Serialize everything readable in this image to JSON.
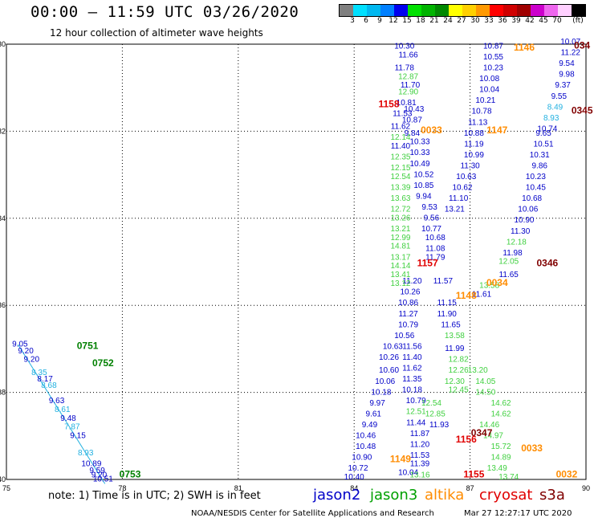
{
  "header": {
    "title": "00:00 – 11:59 UTC 03/26/2020",
    "subtitle": "12 hour collection of altimeter wave heights"
  },
  "scale": {
    "unit_label": "(ft)",
    "items": [
      {
        "label": "",
        "color": "#808080"
      },
      {
        "label": "3",
        "color": "#00e0ff"
      },
      {
        "label": "6",
        "color": "#00b8f0"
      },
      {
        "label": "9",
        "color": "#0080ff"
      },
      {
        "label": "12",
        "color": "#0000ee"
      },
      {
        "label": "15",
        "color": "#00e000"
      },
      {
        "label": "18",
        "color": "#00b400"
      },
      {
        "label": "21",
        "color": "#008800"
      },
      {
        "label": "24",
        "color": "#ffff00"
      },
      {
        "label": "27",
        "color": "#ffd000"
      },
      {
        "label": "30",
        "color": "#ff9900"
      },
      {
        "label": "33",
        "color": "#ff0000"
      },
      {
        "label": "36",
        "color": "#d00000"
      },
      {
        "label": "39",
        "color": "#a00000"
      },
      {
        "label": "42",
        "color": "#cc00cc"
      },
      {
        "label": "45",
        "color": "#ee66ee"
      },
      {
        "label": "70",
        "color": "#ffd0ff"
      },
      {
        "label": "",
        "color": "#000000"
      }
    ]
  },
  "axes": {
    "lon_ticks": [
      "75",
      "78",
      "81",
      "84",
      "87",
      "90"
    ],
    "lat_ticks": [
      "30",
      "32",
      "34",
      "36",
      "38",
      "40"
    ],
    "lon_min": 75,
    "lon_max": 90,
    "lat_min": 30,
    "lat_max": 40
  },
  "colors": {
    "dark_blue": "#0000c8",
    "green": "#40d040",
    "cyan": "#20b0e0",
    "red": "#e00000",
    "orange": "#ff8c00",
    "dark_green": "#008000",
    "dark_red": "#800000"
  },
  "time_labels": [
    {
      "text": "0751",
      "lon": 77.1,
      "lat": 37.0,
      "color": "dark_green"
    },
    {
      "text": "0752",
      "lon": 77.5,
      "lat": 37.4,
      "color": "dark_green"
    },
    {
      "text": "0753",
      "lon": 78.2,
      "lat": 39.95,
      "color": "dark_green"
    },
    {
      "text": "1158",
      "lon": 84.9,
      "lat": 31.45,
      "color": "red"
    },
    {
      "text": "0033",
      "lon": 86.0,
      "lat": 32.05,
      "color": "orange"
    },
    {
      "text": "1147",
      "lon": 87.7,
      "lat": 32.05,
      "color": "orange"
    },
    {
      "text": "1146",
      "lon": 88.4,
      "lat": 30.15,
      "color": "orange"
    },
    {
      "text": "0345",
      "lon": 89.9,
      "lat": 31.6,
      "color": "dark_red"
    },
    {
      "text": "034",
      "lon": 89.9,
      "lat": 30.1,
      "color": "dark_red"
    },
    {
      "text": "1157",
      "lon": 85.9,
      "lat": 35.1,
      "color": "red"
    },
    {
      "text": "0346",
      "lon": 89.0,
      "lat": 35.1,
      "color": "dark_red"
    },
    {
      "text": "0034",
      "lon": 87.7,
      "lat": 35.55,
      "color": "orange"
    },
    {
      "text": "1148",
      "lon": 86.9,
      "lat": 35.85,
      "color": "orange"
    },
    {
      "text": "0347",
      "lon": 87.3,
      "lat": 39.0,
      "color": "dark_red"
    },
    {
      "text": "1156",
      "lon": 86.9,
      "lat": 39.15,
      "color": "red"
    },
    {
      "text": "0033",
      "lon": 88.6,
      "lat": 39.35,
      "color": "orange"
    },
    {
      "text": "1149",
      "lon": 85.2,
      "lat": 39.6,
      "color": "orange"
    },
    {
      "text": "1155",
      "lon": 87.1,
      "lat": 39.95,
      "color": "red"
    },
    {
      "text": "0032",
      "lon": 89.5,
      "lat": 39.95,
      "color": "orange"
    }
  ],
  "observations": [
    {
      "lon": 75.35,
      "lat": 36.95,
      "v": "9.05",
      "c": "dark_blue"
    },
    {
      "lon": 75.5,
      "lat": 37.1,
      "v": "9.20",
      "c": "dark_blue"
    },
    {
      "lon": 75.65,
      "lat": 37.3,
      "v": "9.20",
      "c": "dark_blue"
    },
    {
      "lon": 75.85,
      "lat": 37.6,
      "v": "8.35",
      "c": "cyan"
    },
    {
      "lon": 76.0,
      "lat": 37.75,
      "v": "8.17",
      "c": "dark_blue"
    },
    {
      "lon": 76.1,
      "lat": 37.9,
      "v": "8.68",
      "c": "cyan"
    },
    {
      "lon": 76.3,
      "lat": 38.25,
      "v": "9.63",
      "c": "dark_blue"
    },
    {
      "lon": 76.45,
      "lat": 38.45,
      "v": "8.61",
      "c": "cyan"
    },
    {
      "lon": 76.6,
      "lat": 38.65,
      "v": "9.48",
      "c": "dark_blue"
    },
    {
      "lon": 76.7,
      "lat": 38.85,
      "v": "7.87",
      "c": "cyan"
    },
    {
      "lon": 76.85,
      "lat": 39.05,
      "v": "9.15",
      "c": "dark_blue"
    },
    {
      "lon": 77.05,
      "lat": 39.45,
      "v": "8.93",
      "c": "cyan"
    },
    {
      "lon": 77.2,
      "lat": 39.7,
      "v": "10.89",
      "c": "dark_blue"
    },
    {
      "lon": 77.35,
      "lat": 39.85,
      "v": "9.59",
      "c": "dark_blue"
    },
    {
      "lon": 77.4,
      "lat": 39.95,
      "v": "9.20",
      "c": "dark_blue"
    },
    {
      "lon": 77.5,
      "lat": 40.05,
      "v": "10.51",
      "c": "dark_blue"
    },
    {
      "lon": 85.3,
      "lat": 30.1,
      "v": "10.30",
      "c": "dark_blue"
    },
    {
      "lon": 85.4,
      "lat": 30.3,
      "v": "11.66",
      "c": "dark_blue"
    },
    {
      "lon": 85.3,
      "lat": 30.6,
      "v": "11.78",
      "c": "dark_blue"
    },
    {
      "lon": 85.4,
      "lat": 30.8,
      "v": "12.87",
      "c": "green"
    },
    {
      "lon": 85.45,
      "lat": 31.0,
      "v": "11.70",
      "c": "dark_blue"
    },
    {
      "lon": 85.4,
      "lat": 31.15,
      "v": "12.90",
      "c": "green"
    },
    {
      "lon": 85.35,
      "lat": 31.4,
      "v": "10.81",
      "c": "dark_blue"
    },
    {
      "lon": 85.55,
      "lat": 31.55,
      "v": "10.43",
      "c": "dark_blue"
    },
    {
      "lon": 85.25,
      "lat": 31.65,
      "v": "11.53",
      "c": "dark_blue"
    },
    {
      "lon": 85.5,
      "lat": 31.8,
      "v": "10.87",
      "c": "dark_blue"
    },
    {
      "lon": 85.2,
      "lat": 31.95,
      "v": "11.62",
      "c": "dark_blue"
    },
    {
      "lon": 85.5,
      "lat": 32.1,
      "v": "9.84",
      "c": "dark_blue"
    },
    {
      "lon": 85.2,
      "lat": 32.2,
      "v": "12.14",
      "c": "green"
    },
    {
      "lon": 85.7,
      "lat": 32.3,
      "v": "10.33",
      "c": "dark_blue"
    },
    {
      "lon": 85.2,
      "lat": 32.4,
      "v": "11.40",
      "c": "dark_blue"
    },
    {
      "lon": 85.7,
      "lat": 32.55,
      "v": "10.33",
      "c": "dark_blue"
    },
    {
      "lon": 85.2,
      "lat": 32.65,
      "v": "12.35",
      "c": "green"
    },
    {
      "lon": 85.7,
      "lat": 32.8,
      "v": "10.49",
      "c": "dark_blue"
    },
    {
      "lon": 85.2,
      "lat": 32.9,
      "v": "12.15",
      "c": "green"
    },
    {
      "lon": 85.8,
      "lat": 33.05,
      "v": "10.52",
      "c": "dark_blue"
    },
    {
      "lon": 85.2,
      "lat": 33.1,
      "v": "12.54",
      "c": "green"
    },
    {
      "lon": 85.8,
      "lat": 33.3,
      "v": "10.85",
      "c": "dark_blue"
    },
    {
      "lon": 85.2,
      "lat": 33.35,
      "v": "13.39",
      "c": "green"
    },
    {
      "lon": 85.8,
      "lat": 33.55,
      "v": "9.94",
      "c": "dark_blue"
    },
    {
      "lon": 85.2,
      "lat": 33.6,
      "v": "13.63",
      "c": "green"
    },
    {
      "lon": 85.95,
      "lat": 33.8,
      "v": "9.53",
      "c": "dark_blue"
    },
    {
      "lon": 85.2,
      "lat": 33.85,
      "v": "12.72",
      "c": "green"
    },
    {
      "lon": 86.0,
      "lat": 34.05,
      "v": "9.56",
      "c": "dark_blue"
    },
    {
      "lon": 85.2,
      "lat": 34.05,
      "v": "13.26",
      "c": "green"
    },
    {
      "lon": 86.0,
      "lat": 34.3,
      "v": "10.77",
      "c": "dark_blue"
    },
    {
      "lon": 85.2,
      "lat": 34.3,
      "v": "13.21",
      "c": "green"
    },
    {
      "lon": 86.1,
      "lat": 34.5,
      "v": "10.68",
      "c": "dark_blue"
    },
    {
      "lon": 85.2,
      "lat": 34.5,
      "v": "12.99",
      "c": "green"
    },
    {
      "lon": 86.1,
      "lat": 34.75,
      "v": "11.08",
      "c": "dark_blue"
    },
    {
      "lon": 85.2,
      "lat": 34.7,
      "v": "14.81",
      "c": "green"
    },
    {
      "lon": 86.1,
      "lat": 34.95,
      "v": "11.79",
      "c": "dark_blue"
    },
    {
      "lon": 85.2,
      "lat": 34.95,
      "v": "13.17",
      "c": "green"
    },
    {
      "lon": 85.2,
      "lat": 35.15,
      "v": "14.14",
      "c": "green"
    },
    {
      "lon": 85.2,
      "lat": 35.35,
      "v": "13.41",
      "c": "green"
    },
    {
      "lon": 85.5,
      "lat": 35.5,
      "v": "11.20",
      "c": "dark_blue"
    },
    {
      "lon": 86.3,
      "lat": 35.5,
      "v": "11.57",
      "c": "dark_blue"
    },
    {
      "lon": 85.2,
      "lat": 35.55,
      "v": "13.12",
      "c": "green"
    },
    {
      "lon": 85.45,
      "lat": 35.75,
      "v": "10.26",
      "c": "dark_blue"
    },
    {
      "lon": 87.3,
      "lat": 35.8,
      "v": "11.61",
      "c": "dark_blue"
    },
    {
      "lon": 86.4,
      "lat": 36.0,
      "v": "11.15",
      "c": "dark_blue"
    },
    {
      "lon": 85.4,
      "lat": 36.0,
      "v": "10.86",
      "c": "dark_blue"
    },
    {
      "lon": 86.4,
      "lat": 36.25,
      "v": "11.90",
      "c": "dark_blue"
    },
    {
      "lon": 85.4,
      "lat": 36.25,
      "v": "11.27",
      "c": "dark_blue"
    },
    {
      "lon": 85.4,
      "lat": 36.5,
      "v": "10.79",
      "c": "dark_blue"
    },
    {
      "lon": 86.5,
      "lat": 36.5,
      "v": "11.65",
      "c": "dark_blue"
    },
    {
      "lon": 85.3,
      "lat": 36.75,
      "v": "10.56",
      "c": "dark_blue"
    },
    {
      "lon": 86.6,
      "lat": 36.75,
      "v": "13.58",
      "c": "green"
    },
    {
      "lon": 85.5,
      "lat": 37.0,
      "v": "11.56",
      "c": "dark_blue"
    },
    {
      "lon": 85.0,
      "lat": 37.0,
      "v": "10.63",
      "c": "dark_blue"
    },
    {
      "lon": 86.6,
      "lat": 37.05,
      "v": "11.99",
      "c": "dark_blue"
    },
    {
      "lon": 85.5,
      "lat": 37.25,
      "v": "11.40",
      "c": "dark_blue"
    },
    {
      "lon": 84.9,
      "lat": 37.25,
      "v": "10.26",
      "c": "dark_blue"
    },
    {
      "lon": 86.7,
      "lat": 37.3,
      "v": "12.82",
      "c": "green"
    },
    {
      "lon": 85.5,
      "lat": 37.5,
      "v": "11.62",
      "c": "dark_blue"
    },
    {
      "lon": 84.9,
      "lat": 37.55,
      "v": "10.60",
      "c": "dark_blue"
    },
    {
      "lon": 86.7,
      "lat": 37.55,
      "v": "12.26",
      "c": "green"
    },
    {
      "lon": 87.2,
      "lat": 37.55,
      "v": "13.20",
      "c": "green"
    },
    {
      "lon": 85.5,
      "lat": 37.75,
      "v": "11.35",
      "c": "dark_blue"
    },
    {
      "lon": 84.8,
      "lat": 37.8,
      "v": "10.06",
      "c": "dark_blue"
    },
    {
      "lon": 86.6,
      "lat": 37.8,
      "v": "12.30",
      "c": "green"
    },
    {
      "lon": 87.4,
      "lat": 37.8,
      "v": "14.05",
      "c": "green"
    },
    {
      "lon": 85.5,
      "lat": 38.0,
      "v": "10.18",
      "c": "dark_blue"
    },
    {
      "lon": 84.7,
      "lat": 38.05,
      "v": "10.18",
      "c": "dark_blue"
    },
    {
      "lon": 86.7,
      "lat": 38.0,
      "v": "12.45",
      "c": "green"
    },
    {
      "lon": 87.4,
      "lat": 38.05,
      "v": "14.50",
      "c": "green"
    },
    {
      "lon": 85.6,
      "lat": 38.25,
      "v": "10.79",
      "c": "dark_blue"
    },
    {
      "lon": 84.6,
      "lat": 38.3,
      "v": "9.97",
      "c": "dark_blue"
    },
    {
      "lon": 86.0,
      "lat": 38.3,
      "v": "12.54",
      "c": "green"
    },
    {
      "lon": 87.8,
      "lat": 38.3,
      "v": "14.62",
      "c": "green"
    },
    {
      "lon": 85.6,
      "lat": 38.5,
      "v": "12.51",
      "c": "green"
    },
    {
      "lon": 84.5,
      "lat": 38.55,
      "v": "9.61",
      "c": "dark_blue"
    },
    {
      "lon": 86.1,
      "lat": 38.55,
      "v": "12.85",
      "c": "green"
    },
    {
      "lon": 87.8,
      "lat": 38.55,
      "v": "14.62",
      "c": "green"
    },
    {
      "lon": 85.6,
      "lat": 38.75,
      "v": "11.44",
      "c": "dark_blue"
    },
    {
      "lon": 84.4,
      "lat": 38.8,
      "v": "9.49",
      "c": "dark_blue"
    },
    {
      "lon": 86.2,
      "lat": 38.8,
      "v": "11.93",
      "c": "dark_blue"
    },
    {
      "lon": 87.5,
      "lat": 38.8,
      "v": "14.46",
      "c": "green"
    },
    {
      "lon": 85.7,
      "lat": 39.0,
      "v": "11.87",
      "c": "dark_blue"
    },
    {
      "lon": 84.3,
      "lat": 39.05,
      "v": "10.46",
      "c": "dark_blue"
    },
    {
      "lon": 87.6,
      "lat": 39.05,
      "v": "14.97",
      "c": "green"
    },
    {
      "lon": 85.7,
      "lat": 39.25,
      "v": "11.20",
      "c": "dark_blue"
    },
    {
      "lon": 84.3,
      "lat": 39.3,
      "v": "10.48",
      "c": "dark_blue"
    },
    {
      "lon": 87.8,
      "lat": 39.3,
      "v": "15.72",
      "c": "green"
    },
    {
      "lon": 85.7,
      "lat": 39.5,
      "v": "11.53",
      "c": "dark_blue"
    },
    {
      "lon": 84.2,
      "lat": 39.55,
      "v": "10.90",
      "c": "dark_blue"
    },
    {
      "lon": 87.8,
      "lat": 39.55,
      "v": "14.89",
      "c": "green"
    },
    {
      "lon": 85.7,
      "lat": 39.7,
      "v": "11.39",
      "c": "dark_blue"
    },
    {
      "lon": 84.1,
      "lat": 39.8,
      "v": "10.72",
      "c": "dark_blue"
    },
    {
      "lon": 87.7,
      "lat": 39.8,
      "v": "13.49",
      "c": "green"
    },
    {
      "lon": 85.4,
      "lat": 39.9,
      "v": "10.04",
      "c": "dark_blue"
    },
    {
      "lon": 84.0,
      "lat": 40.0,
      "v": "10.40",
      "c": "dark_blue"
    },
    {
      "lon": 85.7,
      "lat": 39.95,
      "v": "13.16",
      "c": "green"
    },
    {
      "lon": 88.0,
      "lat": 40.0,
      "v": "13.74",
      "c": "green"
    },
    {
      "lon": 87.6,
      "lat": 30.1,
      "v": "10.87",
      "c": "dark_blue"
    },
    {
      "lon": 87.6,
      "lat": 30.35,
      "v": "10.55",
      "c": "dark_blue"
    },
    {
      "lon": 87.6,
      "lat": 30.6,
      "v": "10.23",
      "c": "dark_blue"
    },
    {
      "lon": 87.5,
      "lat": 30.85,
      "v": "10.08",
      "c": "dark_blue"
    },
    {
      "lon": 87.5,
      "lat": 31.1,
      "v": "10.04",
      "c": "dark_blue"
    },
    {
      "lon": 87.4,
      "lat": 31.35,
      "v": "10.21",
      "c": "dark_blue"
    },
    {
      "lon": 87.3,
      "lat": 31.6,
      "v": "10.78",
      "c": "dark_blue"
    },
    {
      "lon": 87.2,
      "lat": 31.85,
      "v": "11.13",
      "c": "dark_blue"
    },
    {
      "lon": 87.1,
      "lat": 32.1,
      "v": "10.88",
      "c": "dark_blue"
    },
    {
      "lon": 87.1,
      "lat": 32.35,
      "v": "11.19",
      "c": "dark_blue"
    },
    {
      "lon": 87.1,
      "lat": 32.6,
      "v": "10.99",
      "c": "dark_blue"
    },
    {
      "lon": 87.0,
      "lat": 32.85,
      "v": "11.30",
      "c": "dark_blue"
    },
    {
      "lon": 86.9,
      "lat": 33.1,
      "v": "10.63",
      "c": "dark_blue"
    },
    {
      "lon": 86.8,
      "lat": 33.35,
      "v": "10.62",
      "c": "dark_blue"
    },
    {
      "lon": 86.7,
      "lat": 33.6,
      "v": "11.10",
      "c": "dark_blue"
    },
    {
      "lon": 86.6,
      "lat": 33.85,
      "v": "13.21",
      "c": "dark_blue"
    },
    {
      "lon": 89.6,
      "lat": 30.0,
      "v": "10.07",
      "c": "dark_blue"
    },
    {
      "lon": 89.6,
      "lat": 30.25,
      "v": "11.22",
      "c": "dark_blue"
    },
    {
      "lon": 89.5,
      "lat": 30.5,
      "v": "9.54",
      "c": "dark_blue"
    },
    {
      "lon": 89.5,
      "lat": 30.75,
      "v": "9.98",
      "c": "dark_blue"
    },
    {
      "lon": 89.4,
      "lat": 31.0,
      "v": "9.37",
      "c": "dark_blue"
    },
    {
      "lon": 89.3,
      "lat": 31.25,
      "v": "9.55",
      "c": "dark_blue"
    },
    {
      "lon": 89.2,
      "lat": 31.5,
      "v": "8.49",
      "c": "cyan"
    },
    {
      "lon": 89.1,
      "lat": 31.75,
      "v": "8.93",
      "c": "cyan"
    },
    {
      "lon": 89.0,
      "lat": 32.0,
      "v": "10.74",
      "c": "dark_blue"
    },
    {
      "lon": 88.9,
      "lat": 32.1,
      "v": "9.65",
      "c": "dark_blue"
    },
    {
      "lon": 88.9,
      "lat": 32.35,
      "v": "10.51",
      "c": "dark_blue"
    },
    {
      "lon": 88.8,
      "lat": 32.6,
      "v": "10.31",
      "c": "dark_blue"
    },
    {
      "lon": 88.8,
      "lat": 32.85,
      "v": "9.86",
      "c": "dark_blue"
    },
    {
      "lon": 88.7,
      "lat": 33.1,
      "v": "10.23",
      "c": "dark_blue"
    },
    {
      "lon": 88.7,
      "lat": 33.35,
      "v": "10.45",
      "c": "dark_blue"
    },
    {
      "lon": 88.6,
      "lat": 33.6,
      "v": "10.68",
      "c": "dark_blue"
    },
    {
      "lon": 88.5,
      "lat": 33.85,
      "v": "10.06",
      "c": "dark_blue"
    },
    {
      "lon": 88.4,
      "lat": 34.1,
      "v": "10.90",
      "c": "dark_blue"
    },
    {
      "lon": 88.3,
      "lat": 34.35,
      "v": "11.30",
      "c": "dark_blue"
    },
    {
      "lon": 88.2,
      "lat": 34.6,
      "v": "12.18",
      "c": "green"
    },
    {
      "lon": 88.1,
      "lat": 34.85,
      "v": "11.98",
      "c": "dark_blue"
    },
    {
      "lon": 88.0,
      "lat": 35.05,
      "v": "12.05",
      "c": "green"
    },
    {
      "lon": 88.0,
      "lat": 35.35,
      "v": "11.65",
      "c": "dark_blue"
    },
    {
      "lon": 87.5,
      "lat": 35.6,
      "v": "13.58",
      "c": "green"
    }
  ],
  "tracks": [
    {
      "color": "cyan",
      "lon1": 75.3,
      "lat1": 36.9,
      "lon2": 77.55,
      "lat2": 40.1
    }
  ],
  "footer": {
    "note": "note:  1) Time is in UTC;  2) SWH is in feet",
    "credit": "NOAA/NESDIS Center for Satellite Applications and Research",
    "timestamp": "Mar 27 12:27:17 UTC 2020",
    "satellites": [
      {
        "name": "jason2",
        "color": "#0000c8"
      },
      {
        "name": "jason3",
        "color": "#00a000"
      },
      {
        "name": "altika",
        "color": "#ff8c00"
      },
      {
        "name": "cryosat",
        "color": "#e00000"
      },
      {
        "name": "s3a",
        "color": "#800000"
      }
    ]
  }
}
